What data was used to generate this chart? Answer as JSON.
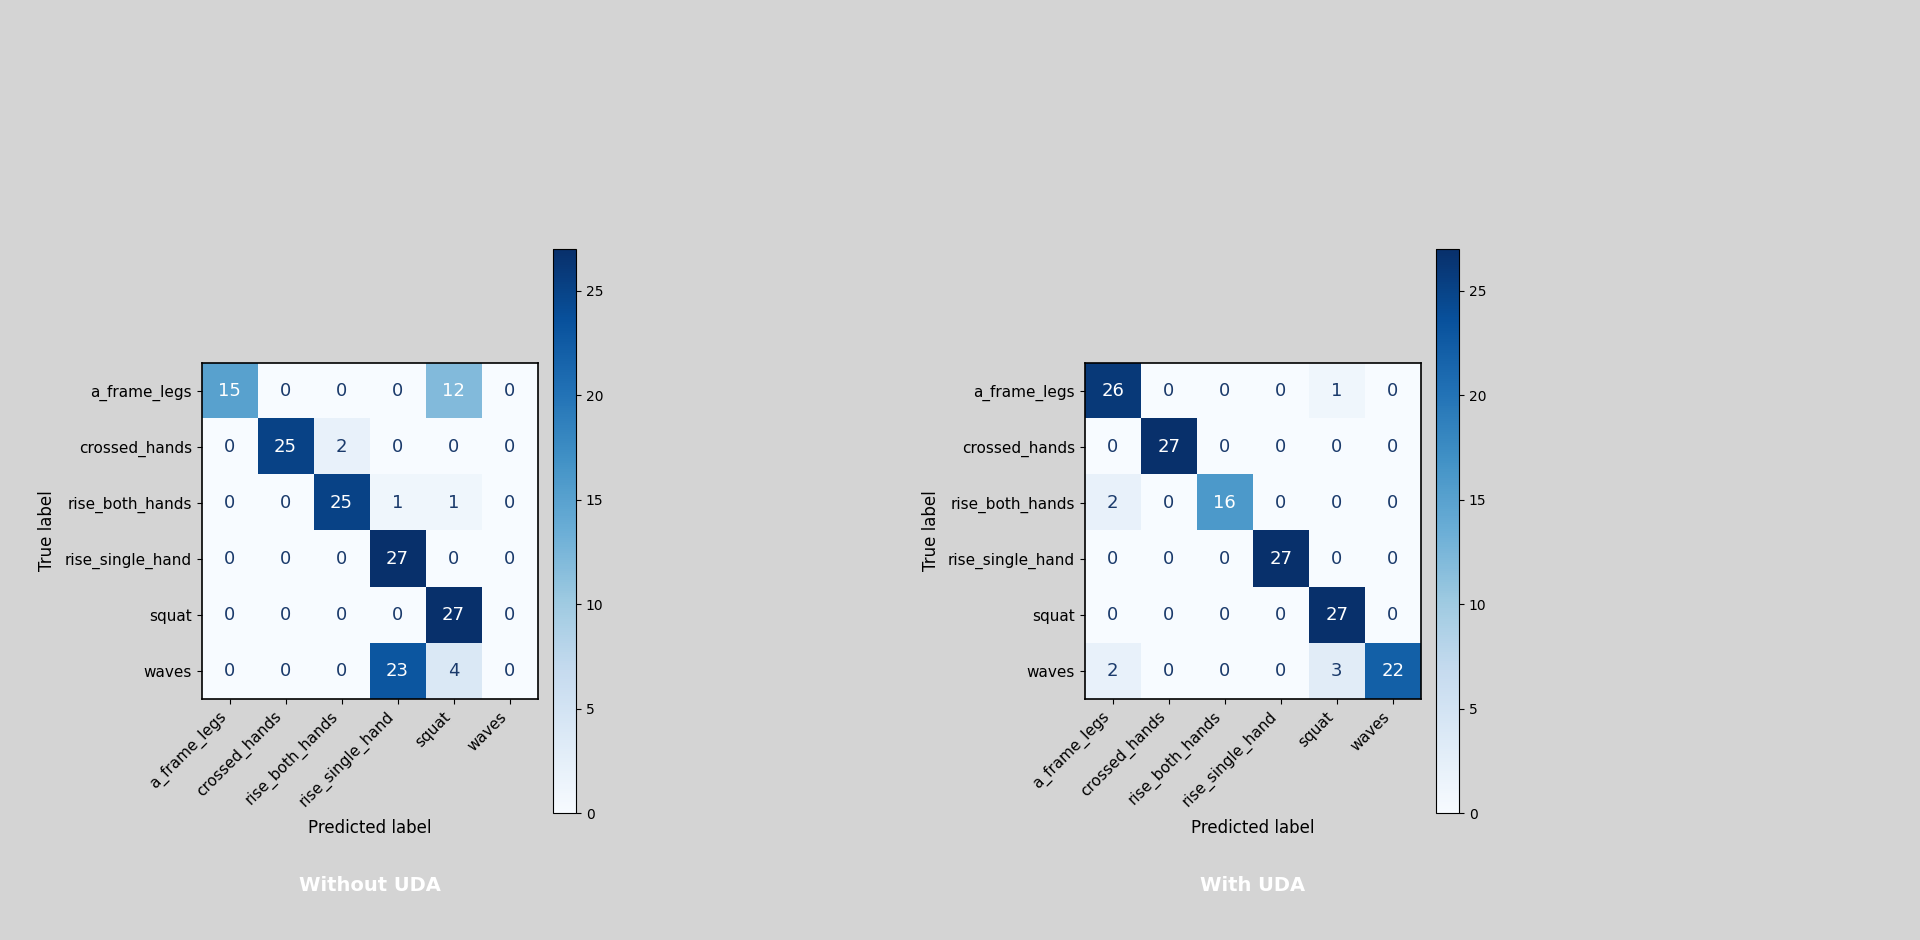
{
  "labels": [
    "a_frame_legs",
    "crossed_hands",
    "rise_both_hands",
    "rise_single_hand",
    "squat",
    "waves"
  ],
  "matrix_no_uda": [
    [
      15,
      0,
      0,
      0,
      12,
      0
    ],
    [
      0,
      25,
      2,
      0,
      0,
      0
    ],
    [
      0,
      0,
      25,
      1,
      1,
      0
    ],
    [
      0,
      0,
      0,
      27,
      0,
      0
    ],
    [
      0,
      0,
      0,
      0,
      27,
      0
    ],
    [
      0,
      0,
      0,
      23,
      4,
      0
    ]
  ],
  "matrix_uda": [
    [
      26,
      0,
      0,
      0,
      1,
      0
    ],
    [
      0,
      27,
      0,
      0,
      0,
      0
    ],
    [
      2,
      0,
      16,
      0,
      0,
      0
    ],
    [
      0,
      0,
      0,
      27,
      0,
      0
    ],
    [
      0,
      0,
      0,
      0,
      27,
      0
    ],
    [
      2,
      0,
      0,
      0,
      3,
      22
    ]
  ],
  "title_no_uda": "Without UDA",
  "title_uda": "With UDA",
  "xlabel": "Predicted label",
  "ylabel": "True label",
  "colorbar_ticks": [
    0,
    5,
    10,
    15,
    20,
    25
  ],
  "vmin": 0,
  "vmax": 27,
  "background_color": "#d4d4d4",
  "title_box_color": "#333333",
  "title_text_color": "#ffffff",
  "text_color_dark": "#1a3a6b",
  "text_color_light": "#ffffff",
  "threshold": 0.42,
  "cell_fontsize": 13,
  "label_fontsize": 11,
  "axis_label_fontsize": 12,
  "title_fontsize": 14,
  "colorbar_label_fontsize": 10
}
